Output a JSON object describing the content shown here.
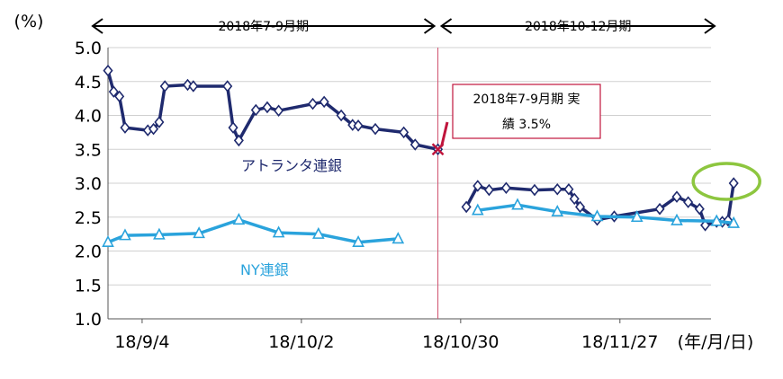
{
  "chart_data": {
    "type": "line",
    "y_unit_label": "(%)",
    "x_unit_label": "(年/月/日)",
    "ylim": [
      1.0,
      5.0
    ],
    "y_ticks": [
      "1.0",
      "1.5",
      "2.0",
      "2.5",
      "3.0",
      "3.5",
      "4.0",
      "4.5",
      "5.0"
    ],
    "x_range_days": [
      "2018-08-29",
      "2018-12-31"
    ],
    "x_ticks": [
      {
        "date": "2018-09-04",
        "label": "18/9/4"
      },
      {
        "date": "2018-10-02",
        "label": "18/10/2"
      },
      {
        "date": "2018-10-30",
        "label": "18/10/30"
      },
      {
        "date": "2018-11-27",
        "label": "18/11/27"
      }
    ],
    "grid": "horizontal",
    "periods": [
      {
        "label": "2018年7-9月期",
        "start": "2018-08-29",
        "end": "2018-10-26"
      },
      {
        "label": "2018年10-12月期",
        "start": "2018-10-26",
        "end": "2018-12-31"
      }
    ],
    "divider_date": "2018-10-26",
    "annotation": {
      "text_line1": "2018年7-9月期  実",
      "text_line2": "績 3.5%",
      "point": {
        "date": "2018-10-26",
        "value": 3.5
      },
      "color": "#c0143c"
    },
    "highlight": {
      "date": "2018-12-17",
      "value": 3.0,
      "color": "#8dc63f"
    },
    "series": [
      {
        "name": "アトランタ連銀",
        "color": "#1f2a6e",
        "marker": "diamond",
        "segments": [
          [
            [
              "2018-08-29",
              4.66
            ],
            [
              "2018-08-30",
              4.35
            ],
            [
              "2018-08-31",
              4.28
            ],
            [
              "2018-09-01",
              3.82
            ],
            [
              "2018-09-05",
              3.78
            ],
            [
              "2018-09-06",
              3.8
            ],
            [
              "2018-09-07",
              3.9
            ],
            [
              "2018-09-08",
              4.43
            ],
            [
              "2018-09-12",
              4.45
            ],
            [
              "2018-09-13",
              4.43
            ],
            [
              "2018-09-19",
              4.43
            ],
            [
              "2018-09-20",
              3.82
            ],
            [
              "2018-09-21",
              3.63
            ],
            [
              "2018-09-24",
              4.08
            ],
            [
              "2018-09-26",
              4.12
            ],
            [
              "2018-09-28",
              4.07
            ],
            [
              "2018-10-04",
              4.17
            ],
            [
              "2018-10-06",
              4.2
            ],
            [
              "2018-10-09",
              4.0
            ],
            [
              "2018-10-11",
              3.86
            ],
            [
              "2018-10-12",
              3.85
            ],
            [
              "2018-10-15",
              3.8
            ],
            [
              "2018-10-20",
              3.75
            ],
            [
              "2018-10-22",
              3.57
            ],
            [
              "2018-10-26",
              3.5
            ]
          ],
          [
            [
              "2018-10-31",
              2.65
            ],
            [
              "2018-11-02",
              2.96
            ],
            [
              "2018-11-04",
              2.9
            ],
            [
              "2018-11-07",
              2.93
            ],
            [
              "2018-11-12",
              2.9
            ],
            [
              "2018-11-16",
              2.91
            ],
            [
              "2018-11-18",
              2.91
            ],
            [
              "2018-11-19",
              2.77
            ],
            [
              "2018-11-20",
              2.65
            ],
            [
              "2018-11-23",
              2.46
            ],
            [
              "2018-11-26",
              2.51
            ],
            [
              "2018-12-04",
              2.62
            ],
            [
              "2018-12-07",
              2.8
            ],
            [
              "2018-12-09",
              2.72
            ],
            [
              "2018-12-11",
              2.62
            ],
            [
              "2018-12-12",
              2.38
            ],
            [
              "2018-12-14",
              2.43
            ],
            [
              "2018-12-15",
              2.43
            ],
            [
              "2018-12-16",
              2.45
            ],
            [
              "2018-12-17",
              3.0
            ]
          ]
        ]
      },
      {
        "name": "NY連銀",
        "color": "#2aa3dc",
        "marker": "triangle",
        "segments": [
          [
            [
              "2018-08-29",
              2.13
            ],
            [
              "2018-09-01",
              2.23
            ],
            [
              "2018-09-07",
              2.24
            ],
            [
              "2018-09-14",
              2.26
            ],
            [
              "2018-09-21",
              2.46
            ],
            [
              "2018-09-28",
              2.27
            ],
            [
              "2018-10-05",
              2.25
            ],
            [
              "2018-10-12",
              2.13
            ],
            [
              "2018-10-19",
              2.18
            ]
          ],
          [
            [
              "2018-11-02",
              2.6
            ],
            [
              "2018-11-09",
              2.68
            ],
            [
              "2018-11-16",
              2.58
            ],
            [
              "2018-11-23",
              2.51
            ],
            [
              "2018-11-30",
              2.5
            ],
            [
              "2018-12-07",
              2.45
            ],
            [
              "2018-12-14",
              2.44
            ],
            [
              "2018-12-17",
              2.41
            ]
          ]
        ]
      }
    ]
  }
}
